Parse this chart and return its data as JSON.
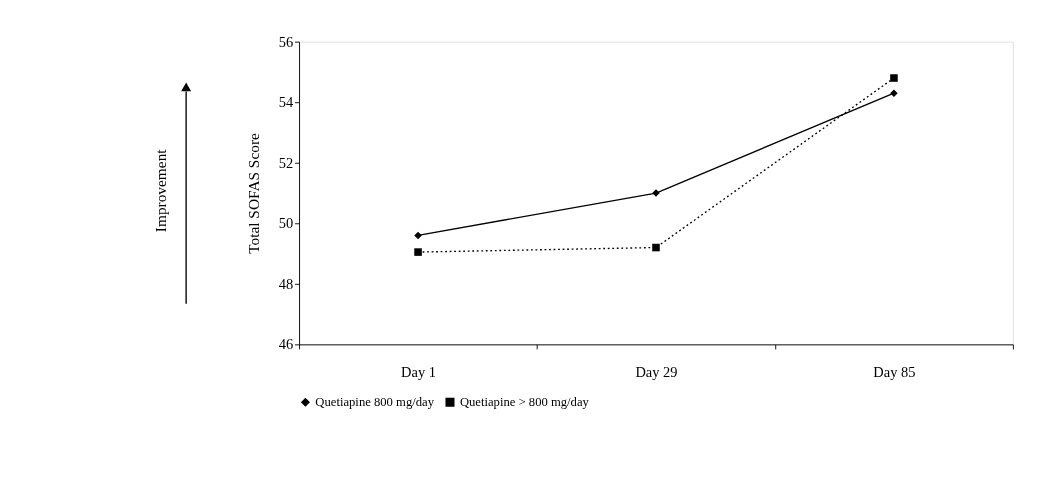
{
  "chart_data": {
    "type": "line",
    "ylabel": "Total SOFAS Score",
    "categories": [
      "Day 1",
      "Day 29",
      "Day 85"
    ],
    "series": [
      {
        "name": "Quetiapine 800 mg/day",
        "color": "#000000",
        "values": [
          49.6,
          51.0,
          54.3
        ],
        "marker": "diamond",
        "line_style": "solid"
      },
      {
        "name": "Quetiapine > 800 mg/day",
        "color": "#000000",
        "values": [
          49.05,
          49.2,
          54.8
        ],
        "marker": "square",
        "line_style": "dotted"
      }
    ],
    "ylim": [
      46,
      56
    ],
    "yticks": [
      46,
      48,
      50,
      52,
      54,
      56
    ],
    "grid": false,
    "legend": "bottom",
    "annotations": [
      "Improvement"
    ]
  }
}
